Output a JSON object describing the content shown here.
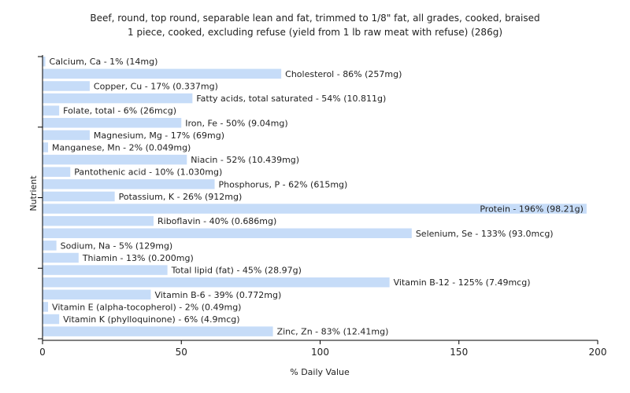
{
  "chart_data": {
    "type": "bar",
    "orientation": "horizontal",
    "title_lines": [
      "Beef, round, top round, separable lean and fat, trimmed to 1/8\" fat, all grades, cooked, braised",
      "1 piece, cooked, excluding refuse (yield from 1 lb raw meat with refuse) (286g)"
    ],
    "xlabel": "% Daily Value",
    "ylabel": "Nutrient",
    "xlim": [
      0,
      200
    ],
    "xticks": [
      0,
      50,
      100,
      150,
      200
    ],
    "grid": false,
    "bar_color": "#c6dcf8",
    "bars": [
      {
        "category": "Calcium, Ca",
        "value": 1,
        "label": "Calcium, Ca - 1% (14mg)"
      },
      {
        "category": "Cholesterol",
        "value": 86,
        "label": "Cholesterol - 86% (257mg)"
      },
      {
        "category": "Copper, Cu",
        "value": 17,
        "label": "Copper, Cu - 17% (0.337mg)"
      },
      {
        "category": "Fatty acids, total saturated",
        "value": 54,
        "label": "Fatty acids, total saturated - 54% (10.811g)"
      },
      {
        "category": "Folate, total",
        "value": 6,
        "label": "Folate, total - 6% (26mcg)"
      },
      {
        "category": "Iron, Fe",
        "value": 50,
        "label": "Iron, Fe - 50% (9.04mg)"
      },
      {
        "category": "Magnesium, Mg",
        "value": 17,
        "label": "Magnesium, Mg - 17% (69mg)"
      },
      {
        "category": "Manganese, Mn",
        "value": 2,
        "label": "Manganese, Mn - 2% (0.049mg)"
      },
      {
        "category": "Niacin",
        "value": 52,
        "label": "Niacin - 52% (10.439mg)"
      },
      {
        "category": "Pantothenic acid",
        "value": 10,
        "label": "Pantothenic acid - 10% (1.030mg)"
      },
      {
        "category": "Phosphorus, P",
        "value": 62,
        "label": "Phosphorus, P - 62% (615mg)"
      },
      {
        "category": "Potassium, K",
        "value": 26,
        "label": "Potassium, K - 26% (912mg)"
      },
      {
        "category": "Protein",
        "value": 196,
        "label": "Protein - 196% (98.21g)"
      },
      {
        "category": "Riboflavin",
        "value": 40,
        "label": "Riboflavin - 40% (0.686mg)"
      },
      {
        "category": "Selenium, Se",
        "value": 133,
        "label": "Selenium, Se - 133% (93.0mcg)"
      },
      {
        "category": "Sodium, Na",
        "value": 5,
        "label": "Sodium, Na - 5% (129mg)"
      },
      {
        "category": "Thiamin",
        "value": 13,
        "label": "Thiamin - 13% (0.200mg)"
      },
      {
        "category": "Total lipid (fat)",
        "value": 45,
        "label": "Total lipid (fat) - 45% (28.97g)"
      },
      {
        "category": "Vitamin B-12",
        "value": 125,
        "label": "Vitamin B-12 - 125% (7.49mcg)"
      },
      {
        "category": "Vitamin B-6",
        "value": 39,
        "label": "Vitamin B-6 - 39% (0.772mg)"
      },
      {
        "category": "Vitamin E (alpha-tocopherol)",
        "value": 2,
        "label": "Vitamin E (alpha-tocopherol) - 2% (0.49mg)"
      },
      {
        "category": "Vitamin K (phylloquinone)",
        "value": 6,
        "label": "Vitamin K (phylloquinone) - 6% (4.9mcg)"
      },
      {
        "category": "Zinc, Zn",
        "value": 83,
        "label": "Zinc, Zn - 83% (12.41mg)"
      }
    ]
  }
}
